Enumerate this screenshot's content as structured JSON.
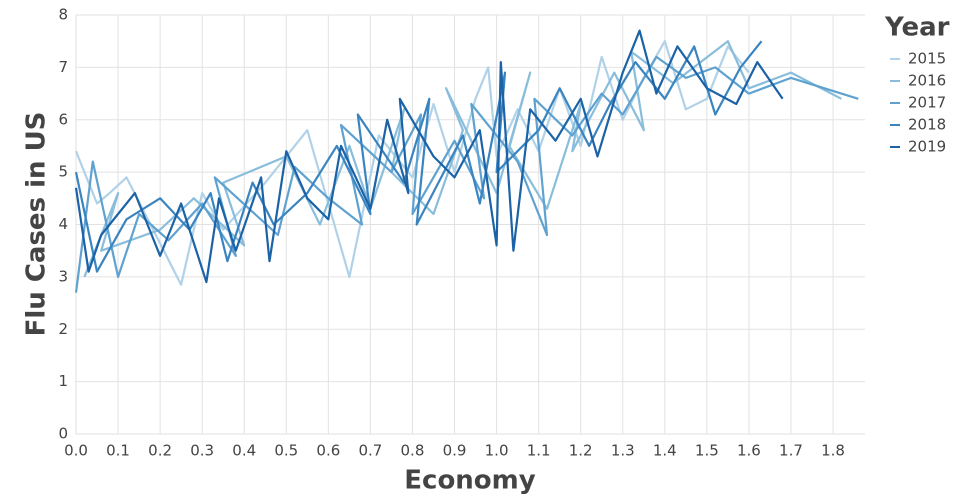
{
  "chart_data": {
    "type": "line",
    "x_label": "Economy",
    "y_label": "Flu Cases in US",
    "legend_title": "Year",
    "legend_position": "right",
    "grid": true,
    "xlim": [
      0,
      1.876
    ],
    "ylim": [
      0,
      8
    ],
    "xticks": [
      {
        "value": 0,
        "label": "0.0"
      },
      0.1,
      0.2,
      0.3,
      0.4,
      0.5,
      0.6,
      0.7,
      0.8,
      0.9,
      {
        "value": 1,
        "label": "1.0"
      },
      1.1,
      1.2,
      1.3,
      1.4,
      1.5,
      1.6,
      1.7,
      1.8
    ],
    "yticks": [
      0,
      1,
      2,
      3,
      4,
      5,
      6,
      7,
      8
    ],
    "series": [
      {
        "name": "2015",
        "color": "#b0d2e8",
        "x": [
          0.0,
          0.05,
          0.08,
          0.12,
          0.25,
          0.3,
          0.35,
          0.45,
          0.55,
          0.6,
          0.65,
          0.72,
          0.8,
          0.85,
          0.9,
          0.95,
          0.98,
          1.0,
          1.05,
          1.1,
          1.15,
          1.2,
          1.25,
          1.3,
          1.35,
          1.4,
          1.45,
          1.5,
          1.55,
          1.6
        ],
        "values": [
          5.4,
          4.4,
          4.6,
          4.9,
          2.85,
          4.6,
          3.9,
          4.8,
          5.8,
          4.4,
          3.0,
          5.7,
          4.9,
          6.3,
          5.0,
          6.4,
          7.0,
          5.3,
          6.2,
          5.4,
          6.6,
          5.5,
          7.2,
          6.0,
          6.8,
          7.5,
          6.2,
          6.4,
          7.4,
          6.9
        ]
      },
      {
        "name": "2016",
        "color": "#89bddc",
        "x": [
          0.02,
          0.1,
          0.06,
          0.2,
          0.28,
          0.4,
          0.35,
          0.5,
          0.58,
          0.65,
          0.7,
          0.78,
          0.75,
          0.85,
          0.92,
          0.88,
          1.0,
          1.08,
          1.03,
          1.12,
          1.2,
          1.18,
          1.28,
          1.35,
          1.32,
          1.42,
          1.55,
          1.6,
          1.7,
          1.82
        ],
        "values": [
          3.0,
          4.6,
          3.5,
          3.9,
          4.5,
          3.6,
          4.8,
          5.3,
          4.0,
          5.5,
          4.3,
          6.2,
          5.0,
          4.2,
          5.8,
          6.6,
          4.6,
          6.9,
          5.5,
          4.3,
          6.3,
          5.4,
          6.9,
          5.8,
          7.3,
          6.7,
          7.5,
          6.6,
          6.9,
          6.4
        ]
      },
      {
        "name": "2017",
        "color": "#5fa2d0",
        "x": [
          0.0,
          0.04,
          0.1,
          0.15,
          0.22,
          0.3,
          0.38,
          0.33,
          0.48,
          0.52,
          0.6,
          0.68,
          0.63,
          0.75,
          0.82,
          0.8,
          0.9,
          0.97,
          0.94,
          1.05,
          1.12,
          1.09,
          1.18,
          1.25,
          1.3,
          1.38,
          1.45,
          1.52,
          1.6,
          1.7,
          1.86
        ],
        "values": [
          2.7,
          5.2,
          3.0,
          4.2,
          3.7,
          4.4,
          3.4,
          4.9,
          3.8,
          5.1,
          4.5,
          4.0,
          5.9,
          5.0,
          6.1,
          4.2,
          5.6,
          4.5,
          6.3,
          5.2,
          3.8,
          6.4,
          5.7,
          6.5,
          6.1,
          7.2,
          6.8,
          7.0,
          6.5,
          6.8,
          6.4
        ]
      },
      {
        "name": "2018",
        "color": "#3a84c0",
        "x": [
          0.0,
          0.05,
          0.12,
          0.2,
          0.27,
          0.32,
          0.36,
          0.42,
          0.47,
          0.55,
          0.62,
          0.7,
          0.67,
          0.78,
          0.84,
          0.81,
          0.92,
          0.96,
          1.02,
          1.0,
          1.1,
          1.15,
          1.22,
          1.27,
          1.33,
          1.4,
          1.47,
          1.52,
          1.58,
          1.63
        ],
        "values": [
          5.0,
          3.1,
          4.1,
          4.5,
          3.9,
          4.6,
          3.3,
          4.8,
          4.0,
          4.6,
          5.5,
          4.2,
          6.1,
          4.8,
          6.4,
          4.0,
          5.7,
          4.4,
          6.9,
          5.0,
          5.8,
          6.6,
          5.5,
          6.3,
          7.1,
          6.4,
          7.4,
          6.1,
          7.0,
          7.5
        ]
      },
      {
        "name": "2019",
        "color": "#1b62a6",
        "x": [
          0.0,
          0.03,
          0.06,
          0.14,
          0.2,
          0.25,
          0.31,
          0.34,
          0.38,
          0.44,
          0.46,
          0.5,
          0.55,
          0.6,
          0.63,
          0.7,
          0.74,
          0.79,
          0.77,
          0.85,
          0.9,
          0.96,
          1.0,
          1.01,
          1.04,
          1.08,
          1.14,
          1.2,
          1.24,
          1.3,
          1.34,
          1.38,
          1.43,
          1.5,
          1.57,
          1.62,
          1.68
        ],
        "values": [
          4.7,
          3.1,
          3.8,
          4.6,
          3.4,
          4.4,
          2.9,
          4.5,
          3.5,
          4.9,
          3.3,
          5.4,
          4.5,
          4.1,
          5.5,
          4.3,
          6.0,
          4.6,
          6.4,
          5.3,
          4.9,
          5.8,
          3.6,
          7.1,
          3.5,
          6.2,
          5.6,
          6.4,
          5.3,
          6.9,
          7.7,
          6.5,
          7.4,
          6.6,
          6.3,
          7.1,
          6.4
        ]
      }
    ]
  }
}
